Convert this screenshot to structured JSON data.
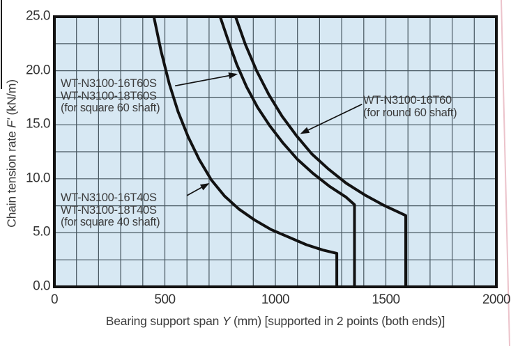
{
  "chart_data": {
    "type": "line",
    "xlabel_prefix": "Bearing support span ",
    "xlabel_var": "Y",
    "xlabel_suffix": " (mm) [supported in 2 points (both ends)]",
    "ylabel_prefix": "Chain tension rate ",
    "ylabel_var": "F'",
    "ylabel_suffix": " (kN/m)",
    "xlim": [
      0,
      2000
    ],
    "ylim": [
      0,
      25
    ],
    "grid": true,
    "x_grid_step": 100,
    "y_grid_step": 2.5,
    "x_ticks": [
      {
        "value": 0,
        "label": "0"
      },
      {
        "value": 500,
        "label": "500"
      },
      {
        "value": 1000,
        "label": "1000"
      },
      {
        "value": 1500,
        "label": "1500"
      },
      {
        "value": 2000,
        "label": "2000"
      }
    ],
    "y_ticks": [
      {
        "value": 25,
        "label": "25.0"
      },
      {
        "value": 20,
        "label": "20.0"
      },
      {
        "value": 15,
        "label": "15.0"
      },
      {
        "value": 10,
        "label": "10.0"
      },
      {
        "value": 5,
        "label": "5.0"
      },
      {
        "value": 0,
        "label": "0.0"
      }
    ],
    "colors": {
      "plot_bg": "#d7e8f3",
      "grid": "#46565f",
      "line": "#121212",
      "text": "#3a3a3a"
    },
    "series": [
      {
        "id": "wt-n3100-16t40s-18t40s",
        "name": "WT-N3100-16T40S / WT-N3100-18T40S (for square 40 shaft)",
        "points": [
          [
            450,
            25
          ],
          [
            483,
            21.8
          ],
          [
            520,
            18.8
          ],
          [
            560,
            16.2
          ],
          [
            605,
            13.9
          ],
          [
            655,
            11.8
          ],
          [
            710,
            9.9
          ],
          [
            770,
            8.4
          ],
          [
            835,
            7.2
          ],
          [
            905,
            6.2
          ],
          [
            980,
            5.3
          ],
          [
            1060,
            4.6
          ],
          [
            1140,
            3.9
          ],
          [
            1215,
            3.4
          ],
          [
            1278,
            3.1
          ],
          [
            1278,
            0
          ]
        ]
      },
      {
        "id": "wt-n3100-16t60s-18t60s",
        "name": "WT-N3100-16T60S / WT-N3100-18T60S (for square 60 shaft)",
        "points": [
          [
            750,
            25
          ],
          [
            785,
            22.9
          ],
          [
            825,
            20.6
          ],
          [
            870,
            18.5
          ],
          [
            920,
            16.6
          ],
          [
            975,
            14.9
          ],
          [
            1035,
            13.3
          ],
          [
            1100,
            11.8
          ],
          [
            1170,
            10.5
          ],
          [
            1245,
            9.3
          ],
          [
            1320,
            8.3
          ],
          [
            1358,
            7.6
          ],
          [
            1358,
            0
          ]
        ]
      },
      {
        "id": "wt-n3100-16t60",
        "name": "WT-N3100-16T60 (for round 60 shaft)",
        "points": [
          [
            820,
            25
          ],
          [
            865,
            22.4
          ],
          [
            915,
            20.0
          ],
          [
            970,
            17.8
          ],
          [
            1030,
            15.8
          ],
          [
            1095,
            14.0
          ],
          [
            1165,
            12.3
          ],
          [
            1240,
            10.9
          ],
          [
            1320,
            9.6
          ],
          [
            1405,
            8.5
          ],
          [
            1495,
            7.5
          ],
          [
            1590,
            6.6
          ],
          [
            1590,
            0
          ]
        ]
      }
    ],
    "annotations": [
      {
        "id": "square60",
        "lines": [
          "WT-N3100-16T60S",
          "WT-N3100-18T60S",
          "(for square 60 shaft)"
        ],
        "arrow": {
          "from": [
            546,
            18.6
          ],
          "to": [
            830,
            19.7
          ]
        }
      },
      {
        "id": "round60",
        "lines": [
          "WT-N3100-16T60",
          "(for round 60 shaft)"
        ],
        "arrow": {
          "from": [
            1392,
            16.9
          ],
          "to": [
            1112,
            14.15
          ]
        }
      },
      {
        "id": "square40",
        "lines": [
          "WT-N3100-16T40S",
          "WT-N3100-18T40S",
          "(for square 40 shaft)"
        ],
        "arrow": {
          "from": [
            600,
            8.45
          ],
          "to": [
            702,
            9.6
          ]
        }
      }
    ]
  }
}
